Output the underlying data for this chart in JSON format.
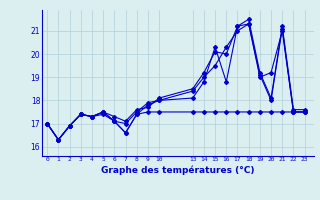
{
  "xlabel": "Graphe des températures (°C)",
  "background_color": "#dbeef0",
  "plot_background": "#dbeef0",
  "grid_color": "#b0d0d8",
  "line_color": "#0000cc",
  "x_ticks": [
    0,
    1,
    2,
    3,
    4,
    5,
    6,
    7,
    8,
    9,
    10,
    13,
    14,
    15,
    16,
    17,
    18,
    19,
    20,
    21,
    22,
    23
  ],
  "y_ticks": [
    16,
    17,
    18,
    19,
    20,
    21
  ],
  "ylim": [
    15.6,
    21.9
  ],
  "xlim": [
    -0.5,
    23.8
  ],
  "series": [
    {
      "x": [
        0,
        1,
        2,
        3,
        4,
        5,
        6,
        7,
        8,
        9,
        10,
        13,
        14,
        15,
        16,
        17,
        18,
        19,
        20,
        21,
        22,
        23
      ],
      "y": [
        17.0,
        16.3,
        16.9,
        17.4,
        17.3,
        17.4,
        17.1,
        16.6,
        17.4,
        17.5,
        17.5,
        17.5,
        17.5,
        17.5,
        17.5,
        17.5,
        17.5,
        17.5,
        17.5,
        17.5,
        17.5,
        17.5
      ]
    },
    {
      "x": [
        0,
        1,
        2,
        3,
        4,
        5,
        6,
        7,
        8,
        9,
        10,
        13,
        14,
        15,
        16,
        17,
        18,
        19,
        20,
        21,
        22,
        23
      ],
      "y": [
        17.0,
        16.3,
        16.9,
        17.4,
        17.3,
        17.5,
        17.3,
        17.1,
        17.6,
        17.7,
        18.1,
        18.5,
        19.2,
        20.1,
        20.0,
        21.2,
        21.3,
        19.1,
        18.0,
        21.1,
        17.5,
        17.5
      ]
    },
    {
      "x": [
        0,
        1,
        2,
        3,
        4,
        5,
        6,
        7,
        8,
        9,
        10,
        13,
        14,
        15,
        16,
        17,
        18,
        19,
        20,
        21,
        22,
        23
      ],
      "y": [
        17.0,
        16.3,
        16.9,
        17.4,
        17.3,
        17.5,
        17.1,
        16.6,
        17.4,
        17.8,
        18.0,
        18.1,
        18.8,
        20.3,
        18.8,
        21.2,
        21.5,
        19.2,
        18.1,
        21.2,
        17.6,
        17.6
      ]
    },
    {
      "x": [
        0,
        1,
        2,
        3,
        4,
        5,
        6,
        7,
        8,
        9,
        10,
        13,
        14,
        15,
        16,
        17,
        18,
        19,
        20,
        21,
        22,
        23
      ],
      "y": [
        17.0,
        16.3,
        16.9,
        17.4,
        17.3,
        17.5,
        17.1,
        17.0,
        17.5,
        17.9,
        18.0,
        18.4,
        19.0,
        19.5,
        20.3,
        21.0,
        21.3,
        19.0,
        19.2,
        21.0,
        17.5,
        17.5
      ]
    }
  ]
}
